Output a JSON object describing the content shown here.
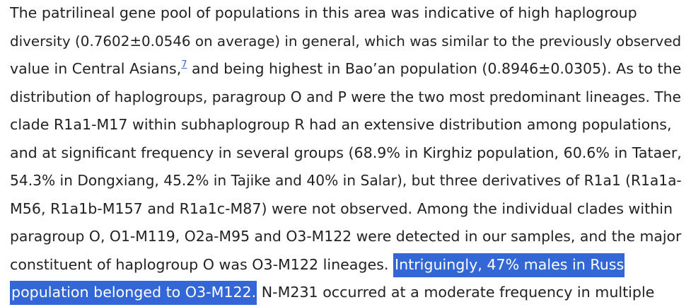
{
  "article": {
    "lines": [
      {
        "text": "The patrilineal gene pool of populations in this area was indicative of high haplogroup"
      },
      {
        "text": "diversity (0.7602±0.0546 on average) in general, which was similar to the previously observed"
      },
      {
        "before": "value in Central Asians,",
        "citation": "7",
        "after": " and being highest in Bao’an population (0.8946±0.0305). As to the"
      },
      {
        "text": "distribution of haplogroups, paragroup O and P were the two most predominant lineages. The"
      },
      {
        "text": "clade R1a1-M17 within subhaplogroup R had an extensive distribution among populations,"
      },
      {
        "text": "and at significant frequency in several groups (68.9% in Kirghiz population, 60.6% in Tataer,"
      },
      {
        "text": "54.3% in Dongxiang, 45.2% in Tajike and 40% in Salar), but three derivatives of R1a1 (R1a1a-"
      },
      {
        "text": "M56, R1a1b-M157 and R1a1c-M87) were not observed. Among the individual clades within"
      },
      {
        "text": "paragroup O, O1-M119, O2a-M95 and O3-M122 were detected in our samples, and the major"
      },
      {
        "before": "constituent of haplogroup O was O3-M122 lineages. ",
        "selected": "Intriguingly, 47% males in Russ"
      },
      {
        "selected": "population belonged to O3-M122.",
        "after": " N-M231 occurred at a moderate frequency in multiple"
      }
    ]
  },
  "colors": {
    "text": "#222222",
    "selection_background": "#3367d6",
    "selection_text": "#ffffff",
    "link": "#3a66c4"
  }
}
